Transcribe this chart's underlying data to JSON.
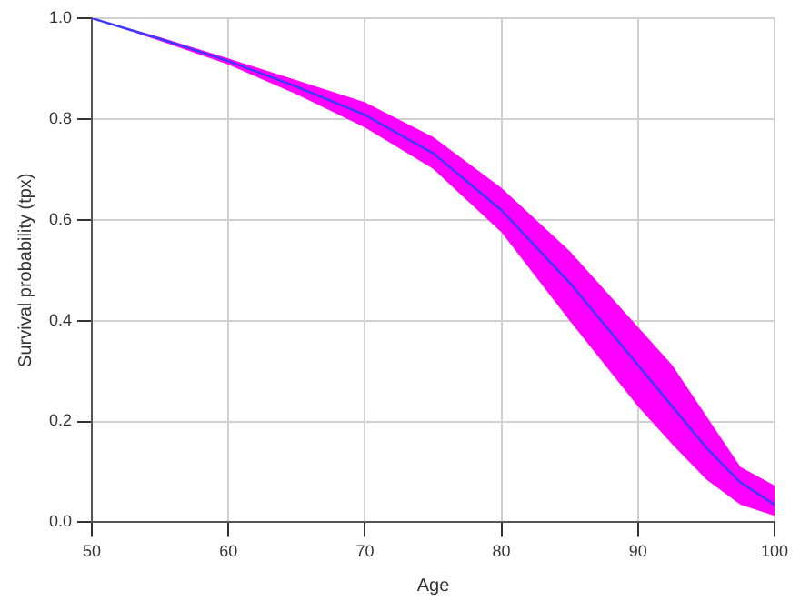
{
  "chart_data": {
    "type": "line",
    "xlabel": "Age",
    "ylabel": "Survival probability (tpx)",
    "x": [
      50,
      55,
      60,
      65,
      70,
      75,
      80,
      85,
      90,
      92.5,
      95,
      97.5,
      100
    ],
    "series": [
      {
        "color": "#3a3aff",
        "values": [
          1.0,
          0.959,
          0.915,
          0.864,
          0.808,
          0.732,
          0.619,
          0.475,
          0.312,
          0.23,
          0.148,
          0.079,
          0.035
        ],
        "lower": [
          1.0,
          0.955,
          0.908,
          0.849,
          0.783,
          0.701,
          0.575,
          0.4,
          0.23,
          0.155,
          0.085,
          0.035,
          0.013
        ],
        "upper": [
          1.0,
          0.962,
          0.92,
          0.877,
          0.833,
          0.764,
          0.663,
          0.538,
          0.387,
          0.312,
          0.211,
          0.11,
          0.073
        ]
      }
    ],
    "xlim": [
      50,
      100
    ],
    "xticks": [
      50,
      60,
      70,
      80,
      90,
      100
    ],
    "ylim": [
      0,
      1
    ],
    "yticks": [
      {
        "value": 0,
        "label": "0.0"
      },
      0.2,
      0.4,
      0.6,
      0.8,
      {
        "value": 1,
        "label": "1.0"
      }
    ],
    "grid": true,
    "legend": false,
    "marker": "none",
    "line_style": "solid"
  }
}
